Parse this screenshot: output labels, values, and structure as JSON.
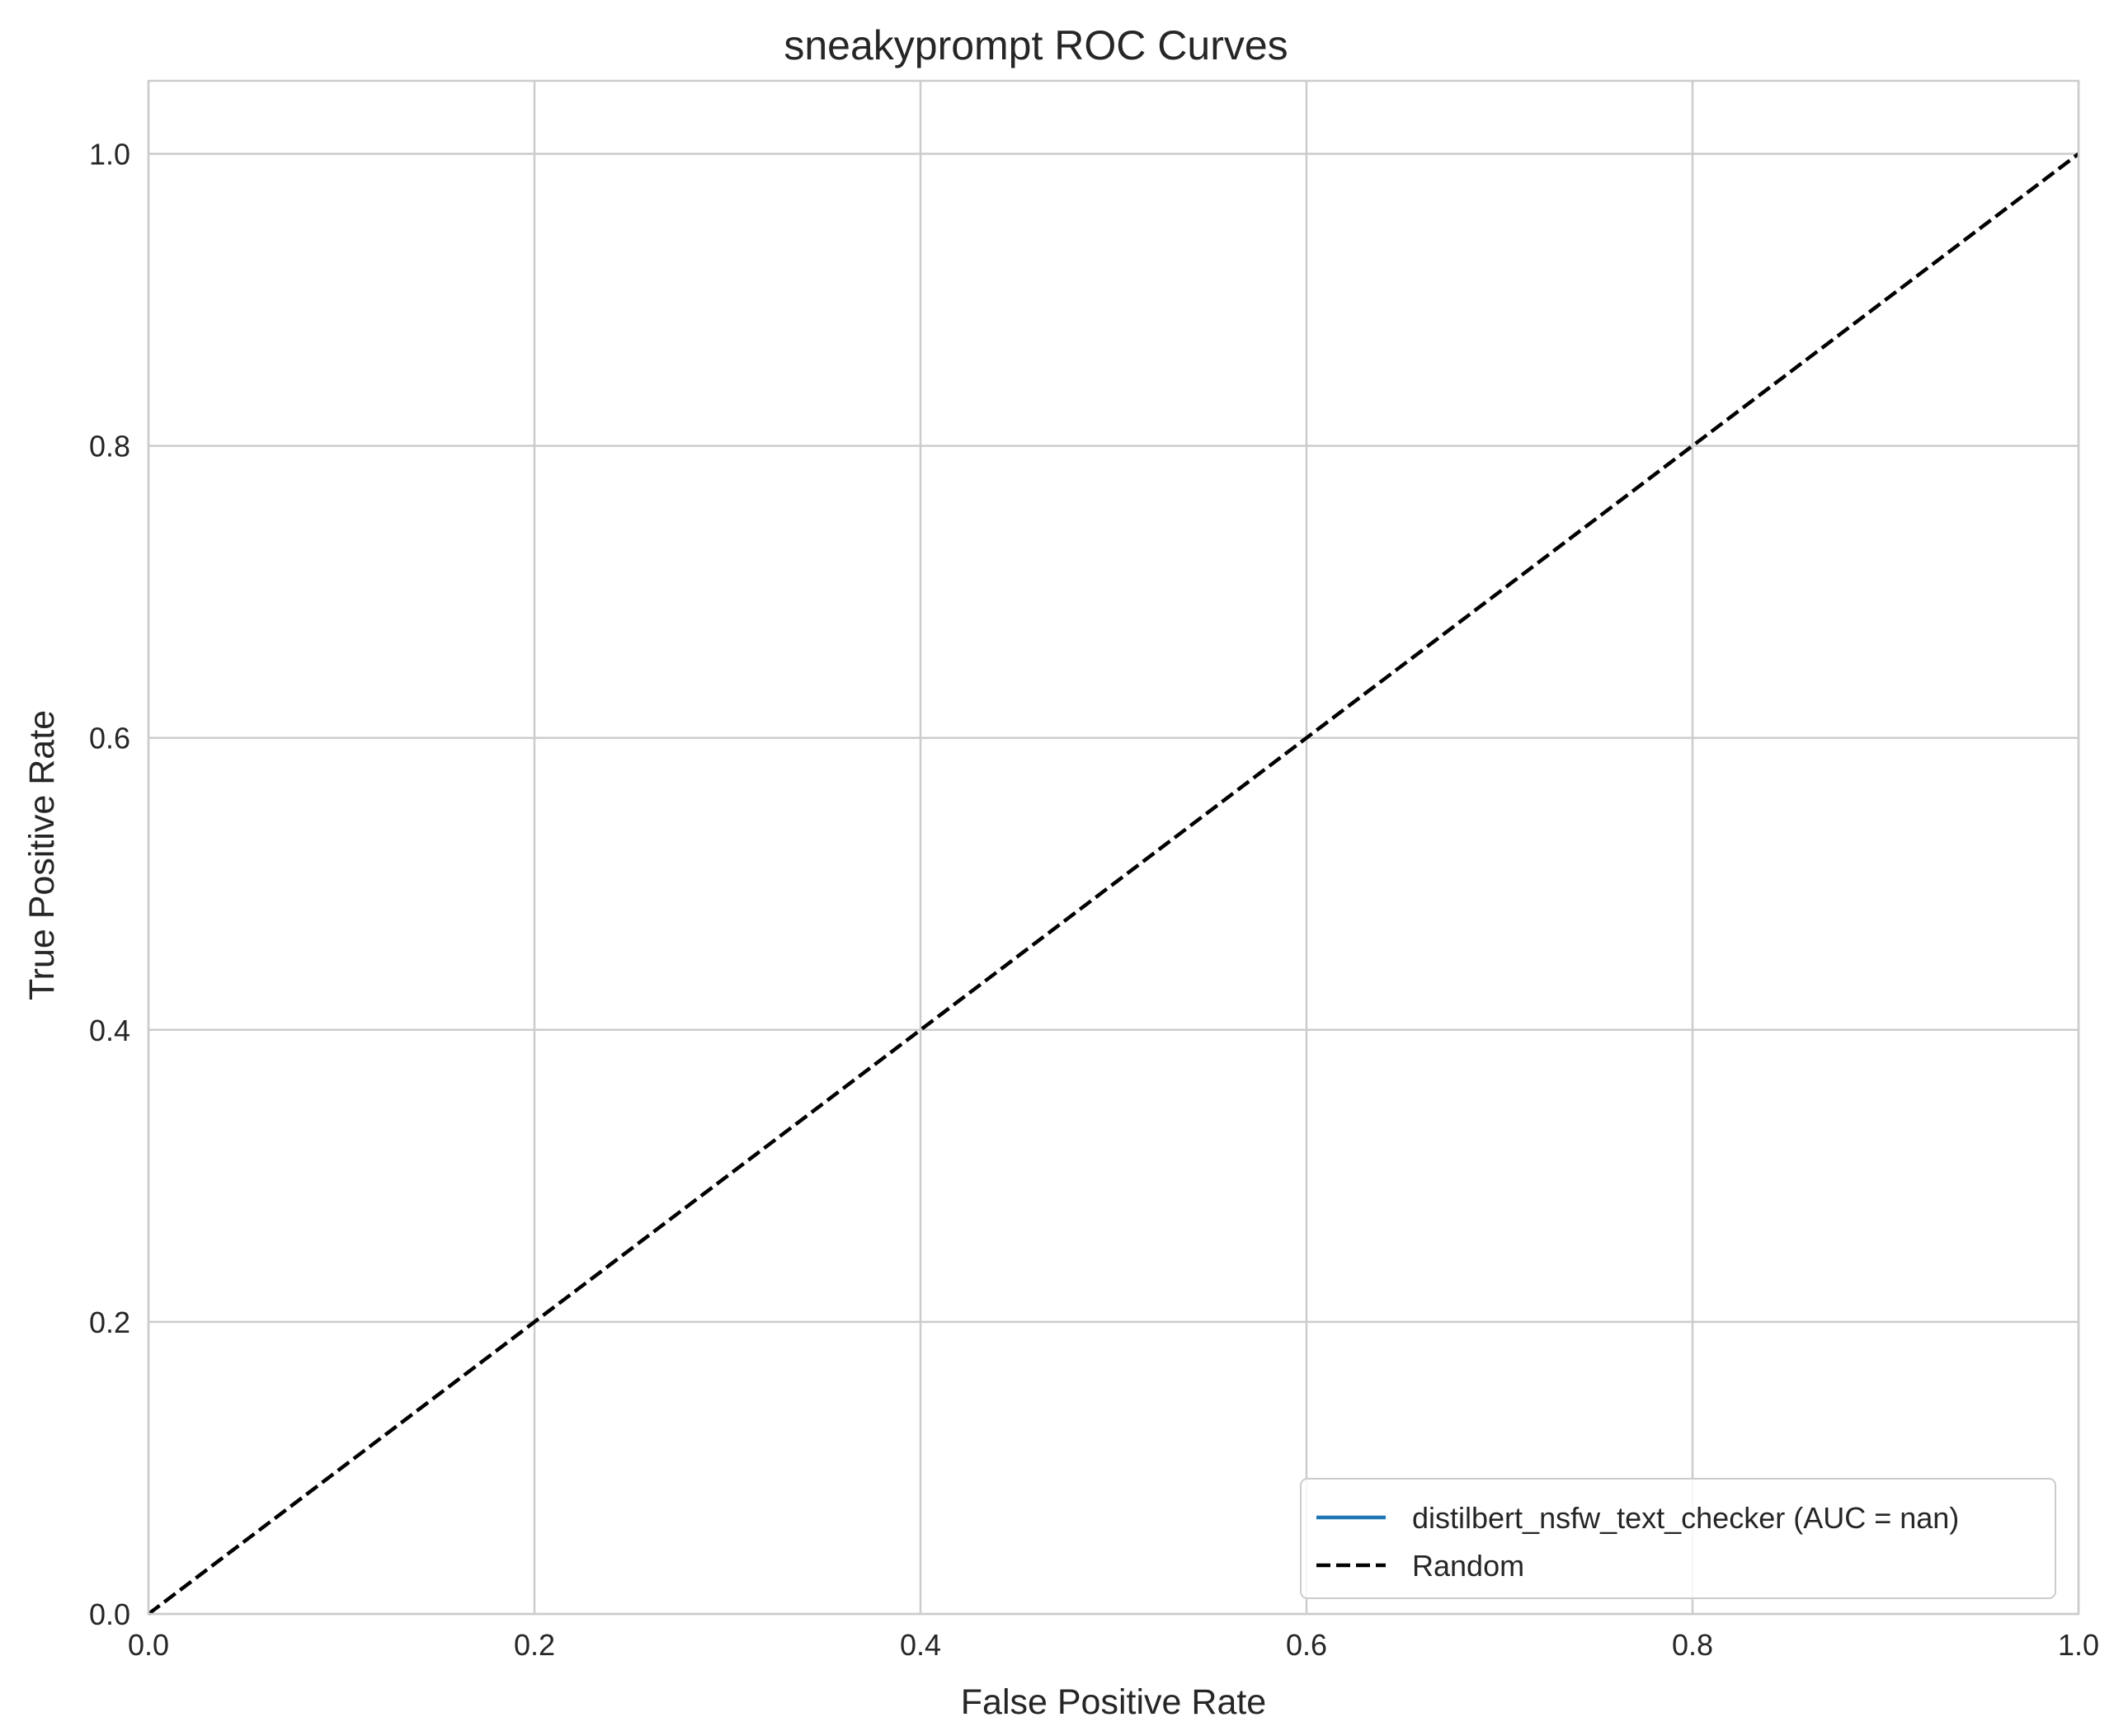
{
  "chart_data": {
    "type": "line",
    "title": "sneakyprompt ROC Curves",
    "xlabel": "False Positive Rate",
    "ylabel": "True Positive Rate",
    "xlim": [
      0.0,
      1.0
    ],
    "ylim": [
      0.0,
      1.05
    ],
    "xticks": [
      "0.0",
      "0.2",
      "0.4",
      "0.6",
      "0.8",
      "1.0"
    ],
    "yticks": [
      "0.0",
      "0.2",
      "0.4",
      "0.6",
      "0.8",
      "1.0"
    ],
    "xtick_values": [
      0.0,
      0.2,
      0.4,
      0.6,
      0.8,
      1.0
    ],
    "ytick_values": [
      0.0,
      0.2,
      0.4,
      0.6,
      0.8,
      1.0
    ],
    "grid": true,
    "legend_position": "lower-right",
    "series": [
      {
        "name": "distilbert_nsfw_text_checker (AUC = nan)",
        "color": "#1f77b4",
        "style": "solid",
        "x": [],
        "y": []
      },
      {
        "name": "Random",
        "color": "#000000",
        "style": "dashed",
        "x": [
          0,
          1
        ],
        "y": [
          0,
          1
        ]
      }
    ]
  }
}
